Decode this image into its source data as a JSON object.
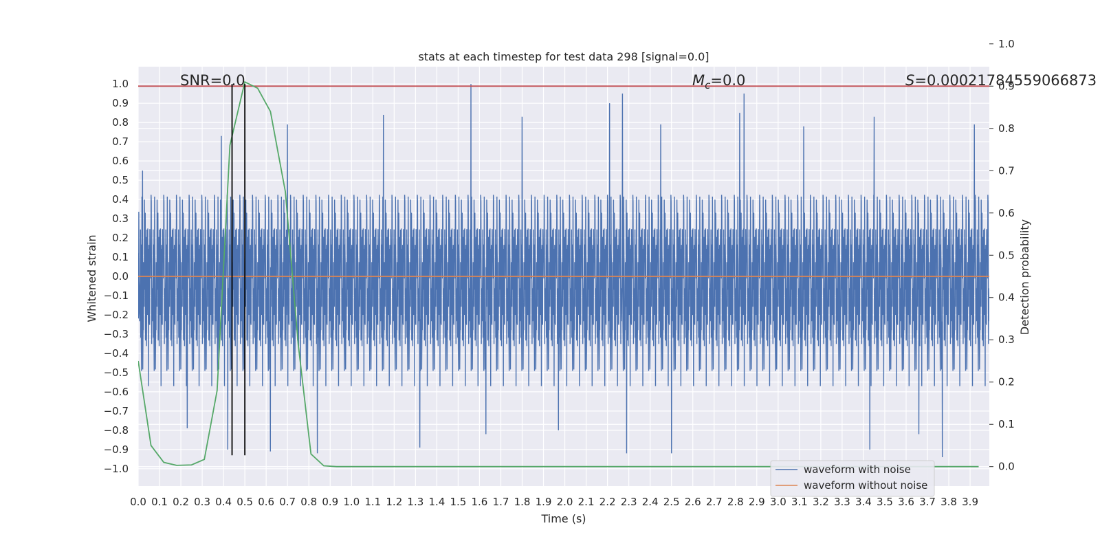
{
  "chart_data": {
    "type": "line",
    "title": "stats at each timestep for test data 298 [signal=0.0]",
    "xlabel": "Time (s)",
    "ylabel": "Whitened strain",
    "y2label": "Detection probability",
    "xlim": [
      0.0,
      3.99
    ],
    "ylim": [
      -1.09,
      1.09
    ],
    "y2lim": [
      -0.046,
      0.946
    ],
    "grid": true,
    "x_ticks": [
      "0.0",
      "0.1",
      "0.2",
      "0.3",
      "0.4",
      "0.5",
      "0.6",
      "0.7",
      "0.8",
      "0.9",
      "1.0",
      "1.1",
      "1.2",
      "1.3",
      "1.4",
      "1.5",
      "1.6",
      "1.7",
      "1.8",
      "1.9",
      "2.0",
      "2.1",
      "2.2",
      "2.3",
      "2.4",
      "2.5",
      "2.6",
      "2.7",
      "2.8",
      "2.9",
      "3.0",
      "3.1",
      "3.2",
      "3.3",
      "3.4",
      "3.5",
      "3.6",
      "3.7",
      "3.8",
      "3.9"
    ],
    "y_ticks": [
      "1.0",
      "0.9",
      "0.8",
      "0.7",
      "0.6",
      "0.5",
      "0.4",
      "0.3",
      "0.2",
      "0.1",
      "0.0",
      "−0.1",
      "−0.2",
      "−0.3",
      "−0.4",
      "−0.5",
      "−0.6",
      "−0.7",
      "−0.8",
      "−0.9",
      "−1.0"
    ],
    "y2_ticks": [
      "1.0",
      "0.9",
      "0.8",
      "0.7",
      "0.6",
      "0.5",
      "0.4",
      "0.3",
      "0.2",
      "0.1",
      "0.0"
    ],
    "annotations": {
      "snr": "SNR=0.0",
      "mc_symbol": "M",
      "mc_sub": "c",
      "mc_value": "=0.0",
      "s_symbol": "S",
      "s_value": "=0.00021784559066873"
    },
    "legend": {
      "placement": "lower-right",
      "items": [
        "waveform with noise",
        "waveform without noise"
      ]
    },
    "series": [
      {
        "name": "waveform with noise",
        "color": "#4c72b0",
        "style": "noise",
        "noise_std": 0.24,
        "n_samples": 4096,
        "peaks": [
          {
            "x": 1.56,
            "y": 1.0
          },
          {
            "x": 1.63,
            "y": -0.82
          },
          {
            "x": 1.97,
            "y": -0.8
          },
          {
            "x": 2.27,
            "y": 0.95
          },
          {
            "x": 2.21,
            "y": 0.9
          },
          {
            "x": 2.84,
            "y": 0.95
          },
          {
            "x": 2.82,
            "y": 0.85
          },
          {
            "x": 2.29,
            "y": -0.92
          },
          {
            "x": 2.5,
            "y": -0.92
          },
          {
            "x": 3.45,
            "y": 0.83
          },
          {
            "x": 3.43,
            "y": -0.9
          },
          {
            "x": 3.77,
            "y": -0.94
          },
          {
            "x": 1.8,
            "y": 0.83
          },
          {
            "x": 1.15,
            "y": 0.84
          },
          {
            "x": 0.39,
            "y": 0.73
          },
          {
            "x": 0.23,
            "y": -0.79
          },
          {
            "x": 0.42,
            "y": -0.9
          },
          {
            "x": 0.62,
            "y": -0.91
          },
          {
            "x": 0.84,
            "y": -0.92
          },
          {
            "x": 1.32,
            "y": -0.89
          },
          {
            "x": 0.7,
            "y": 0.79
          },
          {
            "x": 3.12,
            "y": 0.78
          },
          {
            "x": 3.92,
            "y": 0.79
          },
          {
            "x": 3.66,
            "y": -0.82
          },
          {
            "x": 2.45,
            "y": 0.79
          },
          {
            "x": 0.02,
            "y": 0.55
          }
        ]
      },
      {
        "name": "waveform without noise",
        "color": "#dd8452",
        "x": [
          0.0,
          3.99
        ],
        "y": [
          0.0,
          0.0
        ]
      },
      {
        "name": "threshold",
        "color": "#c44e52",
        "axis": "y2",
        "x": [
          0.0,
          3.99
        ],
        "y": [
          0.9,
          0.9
        ]
      },
      {
        "name": "detection probability",
        "color": "#55a868",
        "axis": "y2",
        "x": [
          0.0,
          0.06,
          0.12,
          0.18,
          0.25,
          0.31,
          0.37,
          0.43,
          0.5,
          0.56,
          0.62,
          0.69,
          0.75,
          0.81,
          0.87,
          0.93,
          1.0,
          3.94
        ],
        "y": [
          0.25,
          0.05,
          0.01,
          0.003,
          0.004,
          0.017,
          0.18,
          0.76,
          0.91,
          0.895,
          0.84,
          0.65,
          0.29,
          0.03,
          0.002,
          0.0,
          0.0,
          0.0
        ]
      }
    ],
    "vlines": [
      {
        "x": 0.44,
        "color": "#000000"
      },
      {
        "x": 0.5,
        "color": "#000000"
      }
    ]
  }
}
